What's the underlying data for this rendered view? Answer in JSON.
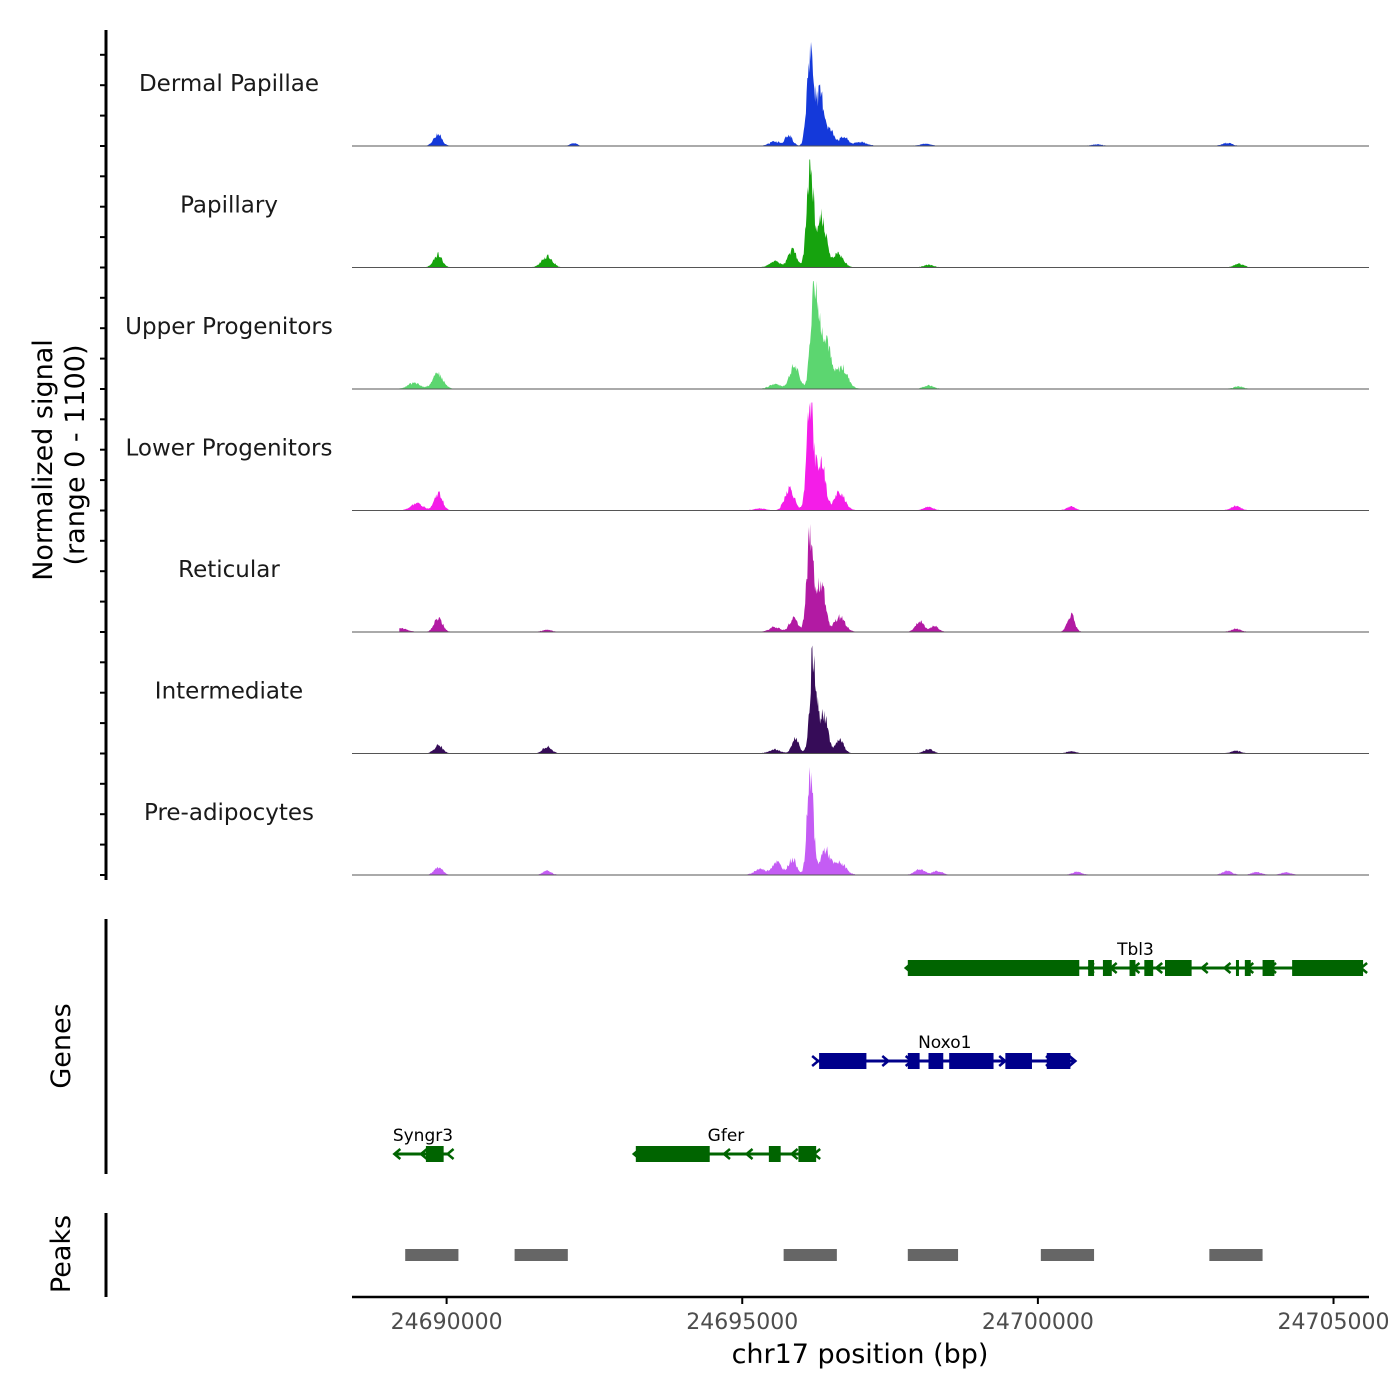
{
  "chart_data": {
    "type": "area",
    "title": "",
    "ylabel_line1": "Normalized signal",
    "ylabel_line2": "(range 0 - 1100)",
    "y_range": [
      0,
      1100
    ],
    "xlabel": "chr17 position (bp)",
    "xlim": [
      24688400,
      24705600
    ],
    "x_ticks": [
      24690000,
      24695000,
      24700000,
      24705000
    ],
    "x_tick_labels": [
      "24690000",
      "24695000",
      "24700000",
      "24705000"
    ],
    "signal_x_range": [
      24689200,
      24705300
    ],
    "tracks": [
      {
        "name": "Dermal Papillae",
        "color": "#1439DA",
        "peaks": [
          [
            24689850,
            120,
            70
          ],
          [
            24692150,
            25,
            60
          ],
          [
            24695550,
            45,
            90
          ],
          [
            24695790,
            110,
            60
          ],
          [
            24696150,
            960,
            55
          ],
          [
            24696320,
            520,
            70
          ],
          [
            24696500,
            140,
            70
          ],
          [
            24696720,
            90,
            70
          ],
          [
            24697000,
            40,
            100
          ],
          [
            24698100,
            20,
            90
          ],
          [
            24701000,
            15,
            80
          ],
          [
            24703200,
            30,
            80
          ]
        ]
      },
      {
        "name": "Papillary",
        "color": "#16A30E",
        "peaks": [
          [
            24689850,
            130,
            70
          ],
          [
            24691700,
            110,
            90
          ],
          [
            24695550,
            60,
            90
          ],
          [
            24695850,
            180,
            70
          ],
          [
            24696150,
            1100,
            55
          ],
          [
            24696350,
            500,
            70
          ],
          [
            24696620,
            130,
            90
          ],
          [
            24698150,
            25,
            80
          ],
          [
            24703400,
            35,
            80
          ]
        ]
      },
      {
        "name": "Upper Progenitors",
        "color": "#5CD670",
        "peaks": [
          [
            24689450,
            60,
            100
          ],
          [
            24689850,
            150,
            90
          ],
          [
            24695550,
            50,
            90
          ],
          [
            24695880,
            230,
            80
          ],
          [
            24696220,
            1100,
            60
          ],
          [
            24696400,
            580,
            80
          ],
          [
            24696680,
            220,
            100
          ],
          [
            24698150,
            35,
            80
          ],
          [
            24703400,
            25,
            80
          ]
        ]
      },
      {
        "name": "Lower Progenitors",
        "color": "#F41DE8",
        "peaks": [
          [
            24689500,
            70,
            100
          ],
          [
            24689860,
            170,
            70
          ],
          [
            24695300,
            20,
            90
          ],
          [
            24695800,
            220,
            80
          ],
          [
            24696150,
            1100,
            55
          ],
          [
            24696330,
            520,
            70
          ],
          [
            24696650,
            180,
            90
          ],
          [
            24698150,
            35,
            80
          ],
          [
            24700560,
            40,
            70
          ],
          [
            24703350,
            45,
            80
          ]
        ]
      },
      {
        "name": "Reticular",
        "color": "#B21AA3",
        "peaks": [
          [
            24689250,
            35,
            90
          ],
          [
            24689860,
            140,
            70
          ],
          [
            24691700,
            20,
            80
          ],
          [
            24695550,
            50,
            90
          ],
          [
            24695870,
            140,
            70
          ],
          [
            24696150,
            1000,
            55
          ],
          [
            24696330,
            520,
            70
          ],
          [
            24696650,
            150,
            90
          ],
          [
            24698000,
            110,
            70
          ],
          [
            24698250,
            60,
            70
          ],
          [
            24700560,
            170,
            60
          ],
          [
            24703350,
            30,
            80
          ]
        ]
      },
      {
        "name": "Intermediate",
        "color": "#360C58",
        "peaks": [
          [
            24689860,
            80,
            70
          ],
          [
            24691700,
            70,
            70
          ],
          [
            24695550,
            40,
            90
          ],
          [
            24695900,
            150,
            60
          ],
          [
            24696200,
            1000,
            55
          ],
          [
            24696380,
            380,
            70
          ],
          [
            24696650,
            130,
            70
          ],
          [
            24698150,
            40,
            80
          ],
          [
            24700560,
            20,
            80
          ],
          [
            24703350,
            25,
            80
          ]
        ]
      },
      {
        "name": "Pre-adipocytes",
        "color": "#C45CF4",
        "peaks": [
          [
            24689860,
            80,
            70
          ],
          [
            24691700,
            40,
            70
          ],
          [
            24695300,
            60,
            90
          ],
          [
            24695580,
            130,
            80
          ],
          [
            24695850,
            160,
            70
          ],
          [
            24696150,
            1100,
            50
          ],
          [
            24696400,
            250,
            80
          ],
          [
            24696650,
            120,
            100
          ],
          [
            24698000,
            60,
            80
          ],
          [
            24698300,
            40,
            80
          ],
          [
            24700660,
            30,
            80
          ],
          [
            24703200,
            40,
            80
          ],
          [
            24703700,
            30,
            80
          ],
          [
            24704200,
            25,
            80
          ]
        ]
      }
    ],
    "genes_label": "Genes",
    "genes": [
      {
        "name": "Tbl3",
        "strand": "-",
        "color": "#006400",
        "row": 0,
        "start": 24697800,
        "end": 24705500,
        "exons": [
          [
            24697800,
            24700700
          ],
          [
            24700850,
            24700950
          ],
          [
            24701100,
            24701250
          ],
          [
            24701550,
            24701650
          ],
          [
            24701800,
            24701950
          ],
          [
            24702150,
            24702600
          ],
          [
            24703350,
            24703400
          ],
          [
            24703500,
            24703600
          ],
          [
            24703800,
            24704000
          ],
          [
            24704300,
            24705500
          ]
        ]
      },
      {
        "name": "Noxo1",
        "strand": "+",
        "color": "#00008B",
        "row": 1,
        "start": 24696250,
        "end": 24700600,
        "exons": [
          [
            24696300,
            24697100
          ],
          [
            24697800,
            24698000
          ],
          [
            24698150,
            24698400
          ],
          [
            24698500,
            24699250
          ],
          [
            24699450,
            24699900
          ],
          [
            24700150,
            24700550
          ]
        ]
      },
      {
        "name": "Syngr3",
        "strand": "-",
        "color": "#006400",
        "row": 2,
        "start": 24689150,
        "end": 24690050,
        "exons": [
          [
            24689650,
            24689950
          ]
        ]
      },
      {
        "name": "Gfer",
        "strand": "-",
        "color": "#006400",
        "row": 2,
        "start": 24693200,
        "end": 24696250,
        "exons": [
          [
            24693200,
            24694450
          ],
          [
            24695450,
            24695650
          ],
          [
            24695950,
            24696250
          ]
        ]
      }
    ],
    "peaks_label": "Peaks",
    "peak_regions": [
      [
        24689300,
        24690200
      ],
      [
        24691150,
        24692050
      ],
      [
        24695700,
        24696600
      ],
      [
        24697800,
        24698650
      ],
      [
        24700050,
        24700950
      ],
      [
        24702900,
        24703800
      ]
    ]
  },
  "colors": {
    "axis": "#000000",
    "baseline": "#555555",
    "peak_bar": "#666666",
    "tick_label": "#4D4D4D",
    "track_label": "#1A1A1A"
  }
}
